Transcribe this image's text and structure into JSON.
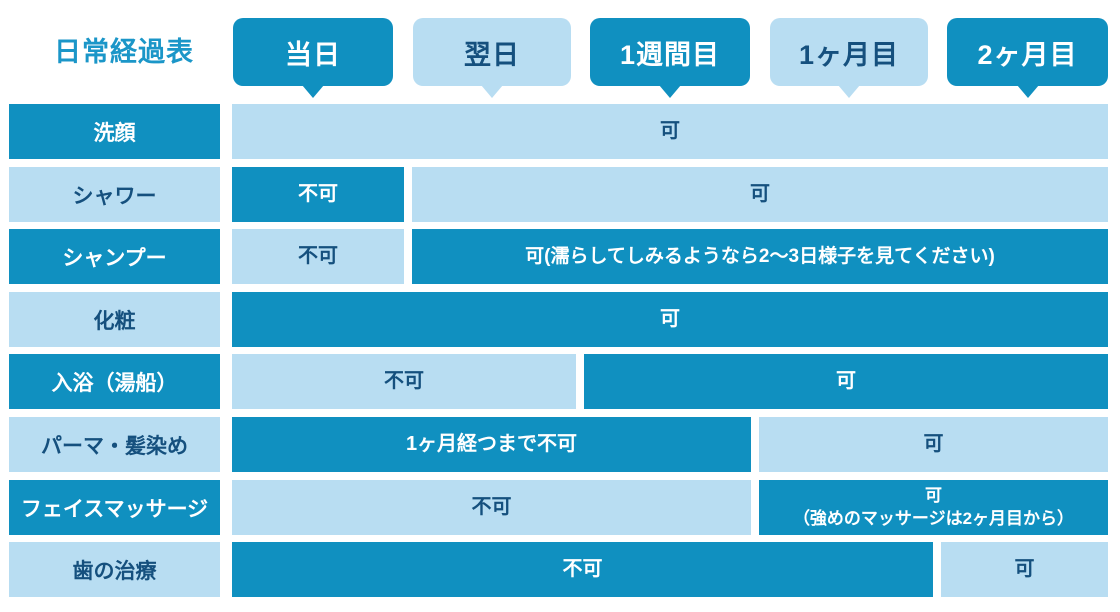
{
  "title": "日常経過表",
  "colors": {
    "dark_blue": "#1090c0",
    "light_blue": "#b8ddf2",
    "navy_text": "#15507e",
    "title_blue": "#1b96c8",
    "background": "#ffffff"
  },
  "header": {
    "tabs": [
      {
        "label": "当日",
        "tone": "dark"
      },
      {
        "label": "翌日",
        "tone": "light"
      },
      {
        "label": "1週間目",
        "tone": "dark"
      },
      {
        "label": "1ヶ月目",
        "tone": "light"
      },
      {
        "label": "2ヶ月目",
        "tone": "dark"
      }
    ]
  },
  "rows": [
    {
      "label": "洗顔",
      "label_tone": "dark",
      "segments": [
        {
          "text": "可",
          "tone": "light",
          "from": 0,
          "to": 5
        }
      ]
    },
    {
      "label": "シャワー",
      "label_tone": "light",
      "segments": [
        {
          "text": "不可",
          "tone": "dark",
          "from": 0,
          "to": 1
        },
        {
          "text": "可",
          "tone": "light",
          "from": 1,
          "to": 5
        }
      ]
    },
    {
      "label": "シャンプー",
      "label_tone": "dark",
      "segments": [
        {
          "text": "不可",
          "tone": "light",
          "from": 0,
          "to": 1
        },
        {
          "text": "可(濡らしてしみるようなら2〜3日様子を見てください)",
          "tone": "dark",
          "from": 1,
          "to": 5
        }
      ]
    },
    {
      "label": "化粧",
      "label_tone": "light",
      "segments": [
        {
          "text": "可",
          "tone": "dark",
          "from": 0,
          "to": 5
        }
      ]
    },
    {
      "label": "入浴（湯船）",
      "label_tone": "dark",
      "segments": [
        {
          "text": "不可",
          "tone": "light",
          "from": 0,
          "to": 2
        },
        {
          "text": "可",
          "tone": "dark",
          "from": 2,
          "to": 5
        }
      ]
    },
    {
      "label": "パーマ・髪染め",
      "label_tone": "light",
      "segments": [
        {
          "text": "1ヶ月経つまで不可",
          "tone": "dark",
          "from": 0,
          "to": 3
        },
        {
          "text": "可",
          "tone": "light",
          "from": 3,
          "to": 5
        }
      ]
    },
    {
      "label": "フェイスマッサージ",
      "label_tone": "dark",
      "segments": [
        {
          "text": "不可",
          "tone": "light",
          "from": 0,
          "to": 3
        },
        {
          "text": "可",
          "tone": "dark",
          "from": 3,
          "to": 5,
          "line2": "（強めのマッサージは2ヶ月目から）"
        }
      ]
    },
    {
      "label": "歯の治療",
      "label_tone": "light",
      "segments": [
        {
          "text": "不可",
          "tone": "dark",
          "from": 0,
          "to": 4
        },
        {
          "text": "可",
          "tone": "light",
          "from": 4,
          "to": 5
        }
      ]
    }
  ]
}
